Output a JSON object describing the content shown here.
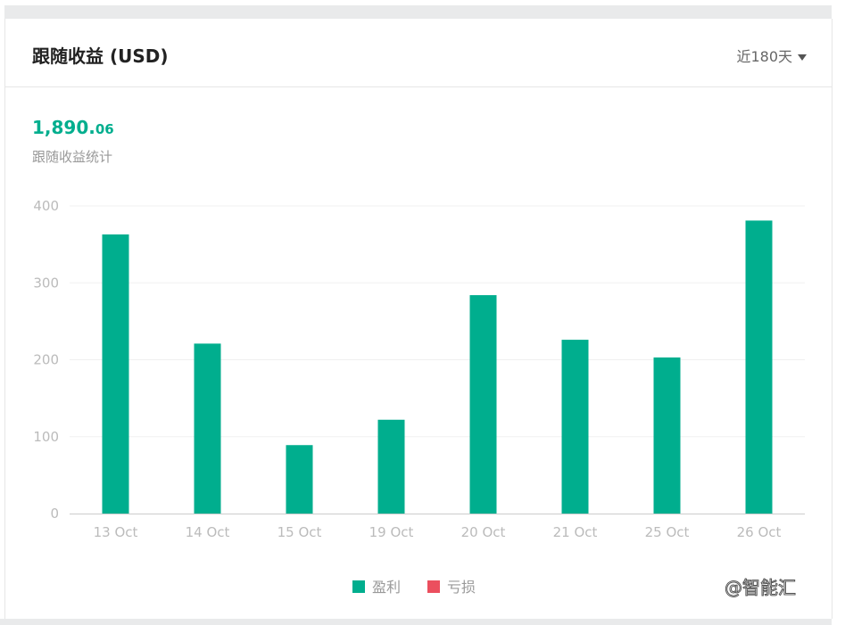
{
  "header": {
    "title": "跟随收益 (USD)",
    "range_label": "近180天"
  },
  "summary": {
    "value_main": "1,890.",
    "value_decimal": "06",
    "label": "跟随收益统计"
  },
  "colors": {
    "profit": "#00ae8e",
    "loss": "#eb4f5e"
  },
  "watermark": "@智能汇",
  "chart_data": {
    "type": "bar",
    "categories": [
      "13 Oct",
      "14 Oct",
      "15 Oct",
      "19 Oct",
      "20 Oct",
      "21 Oct",
      "25 Oct",
      "26 Oct"
    ],
    "series": [
      {
        "name": "盈利",
        "values": [
          363,
          221,
          89,
          122,
          284,
          226,
          203,
          381
        ]
      },
      {
        "name": "亏损",
        "values": [
          0,
          0,
          0,
          0,
          0,
          0,
          0,
          0
        ]
      }
    ],
    "yticks": [
      0,
      100,
      200,
      300,
      400
    ],
    "ylim": [
      0,
      400
    ],
    "grid": true,
    "legend": "bottom"
  }
}
